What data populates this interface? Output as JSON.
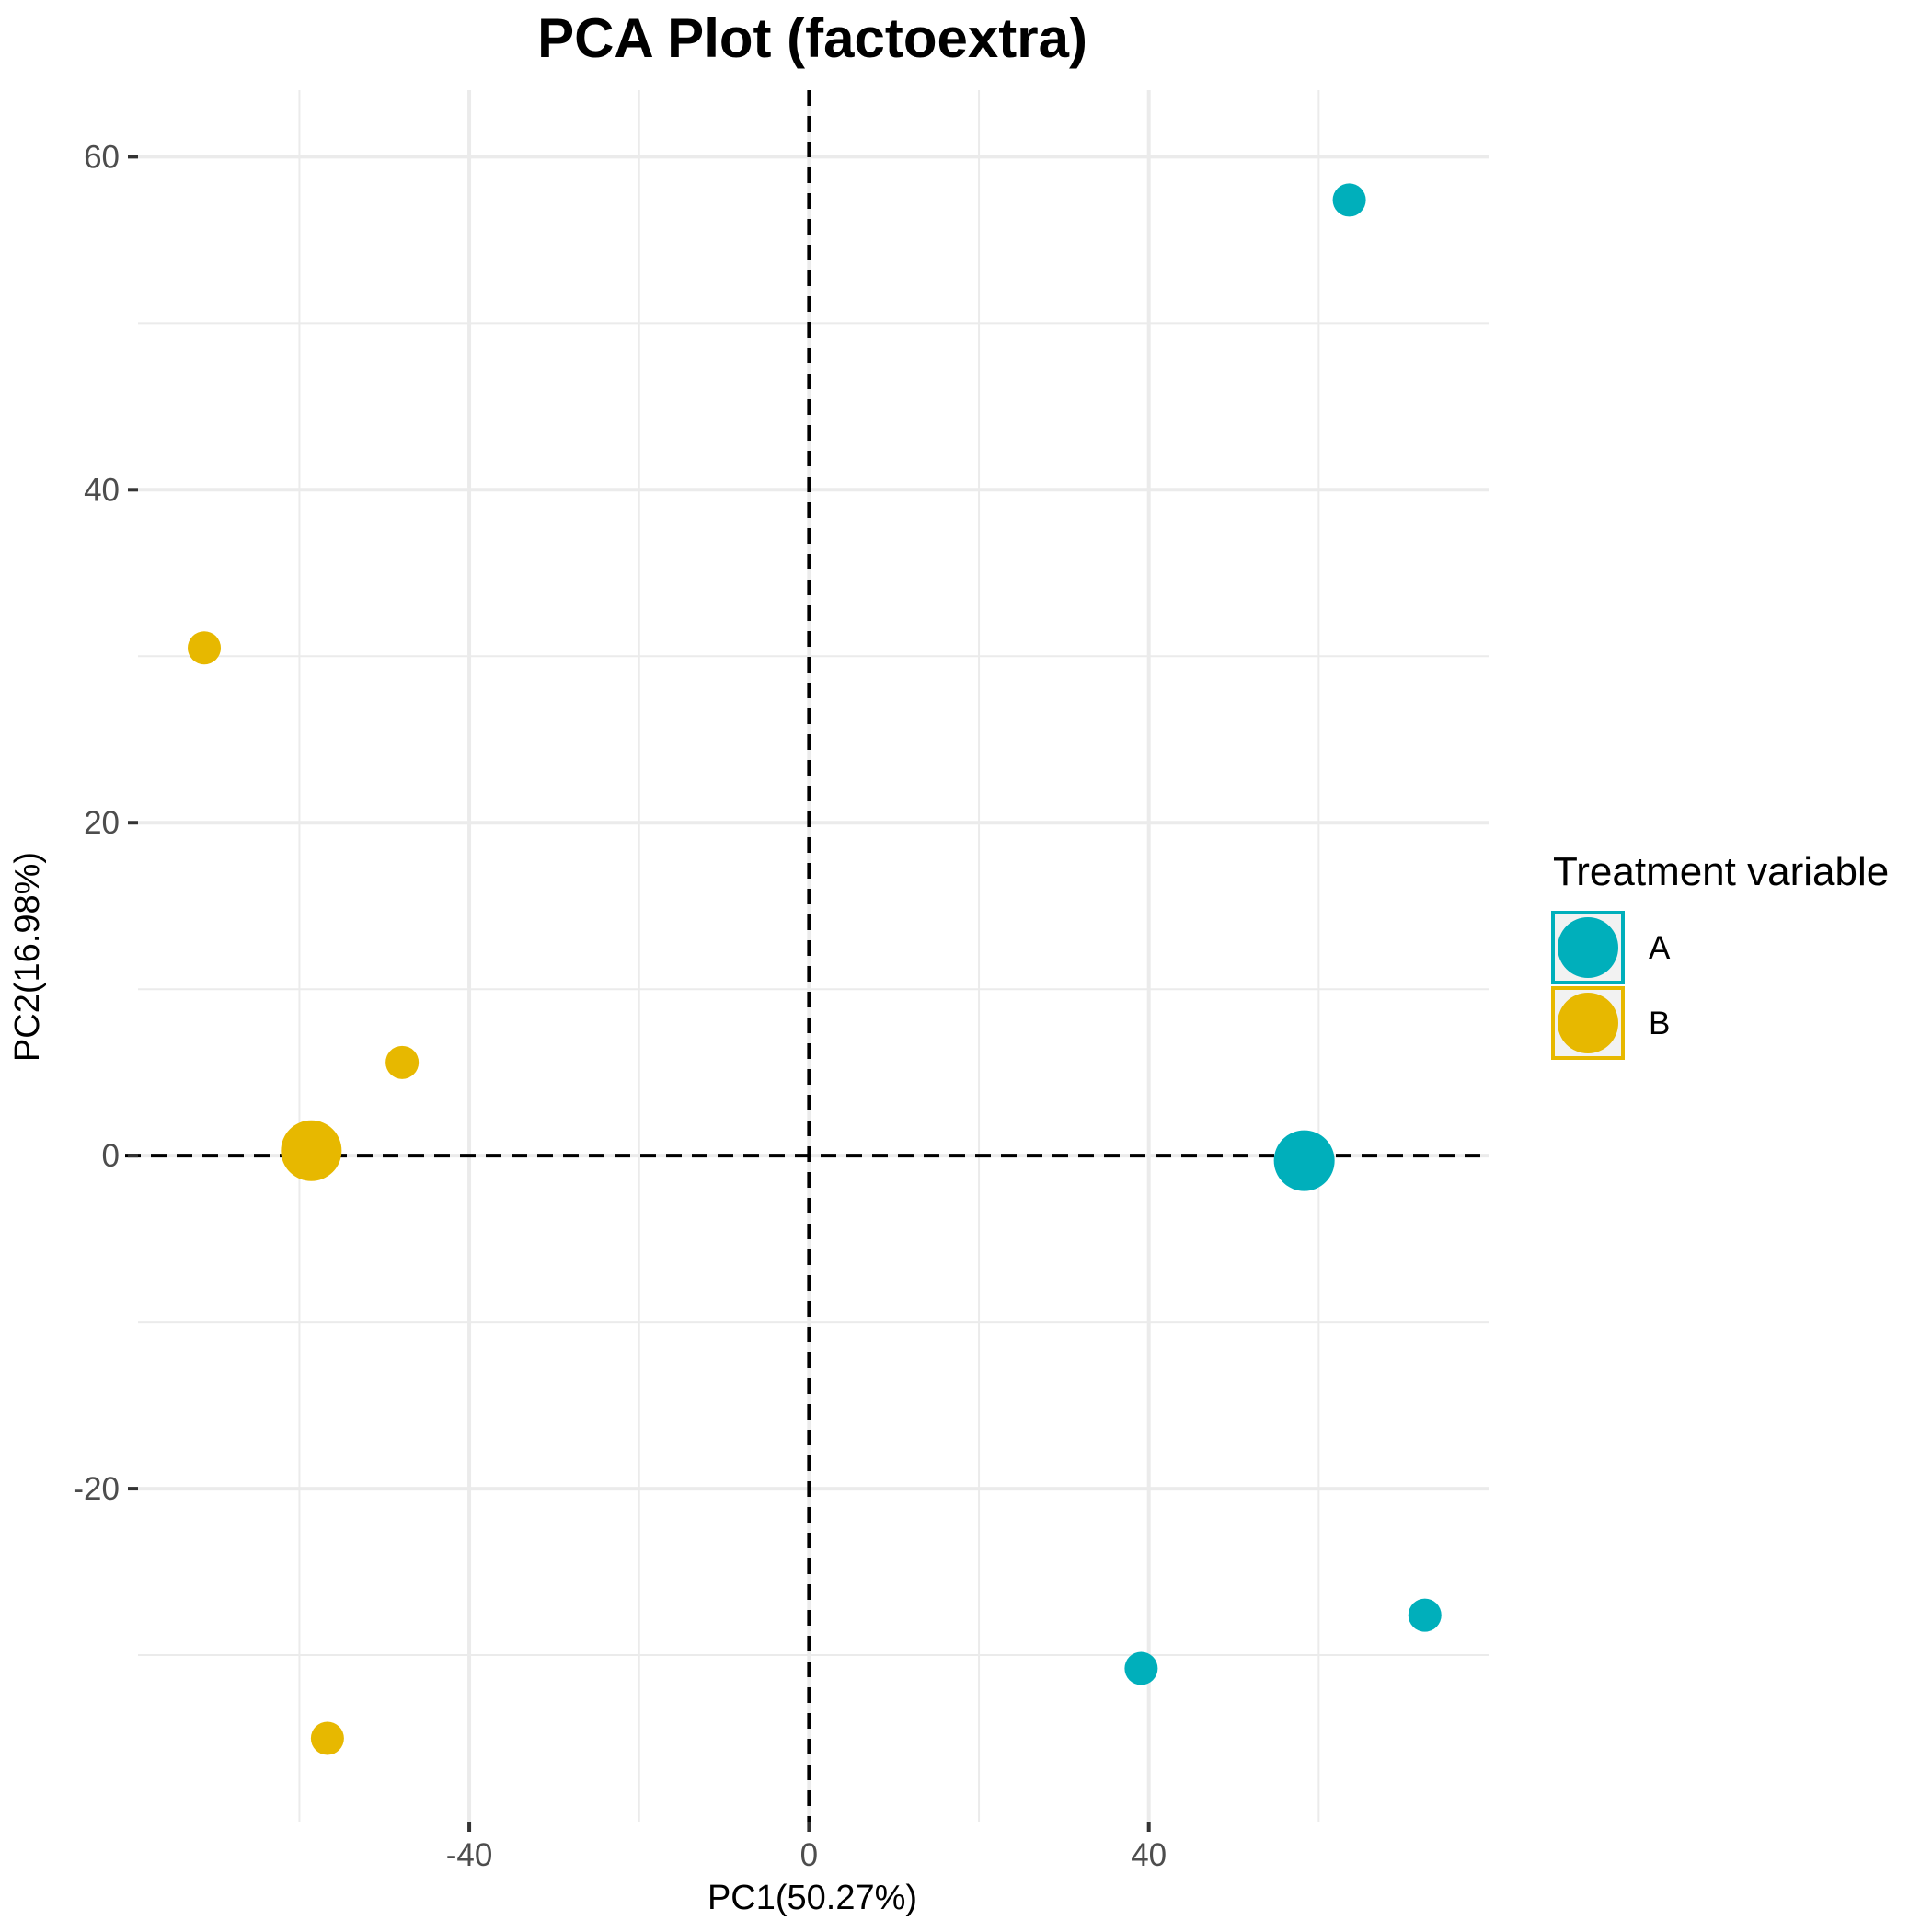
{
  "chart_data": {
    "type": "scatter",
    "title": "PCA Plot (factoextra)",
    "xlabel": "PC1(50.27%)",
    "ylabel": "PC2(16.98%)",
    "xlim": [
      -79,
      80
    ],
    "ylim": [
      -40,
      64
    ],
    "xticks": [
      -40,
      0,
      40
    ],
    "yticks": [
      -20,
      0,
      20,
      40,
      60
    ],
    "grid": true,
    "reference_lines": {
      "x": 0,
      "y": 0,
      "style": "dashed"
    },
    "legend": {
      "title": "Treatment variable",
      "placement": "right",
      "items": [
        {
          "label": "A",
          "color": "#00AFBB"
        },
        {
          "label": "B",
          "color": "#E7B800"
        }
      ]
    },
    "series": [
      {
        "name": "A",
        "color": "#00AFBB",
        "points": [
          {
            "x": 63.6,
            "y": 57.4
          },
          {
            "x": 72.5,
            "y": -27.6
          },
          {
            "x": 39.1,
            "y": -30.8
          }
        ],
        "centroid": {
          "x": 58.3,
          "y": -0.3
        }
      },
      {
        "name": "B",
        "color": "#E7B800",
        "points": [
          {
            "x": -71.2,
            "y": 30.5
          },
          {
            "x": -47.9,
            "y": 5.6
          },
          {
            "x": -56.7,
            "y": -35.0
          }
        ],
        "centroid": {
          "x": -58.6,
          "y": 0.3
        }
      }
    ]
  }
}
